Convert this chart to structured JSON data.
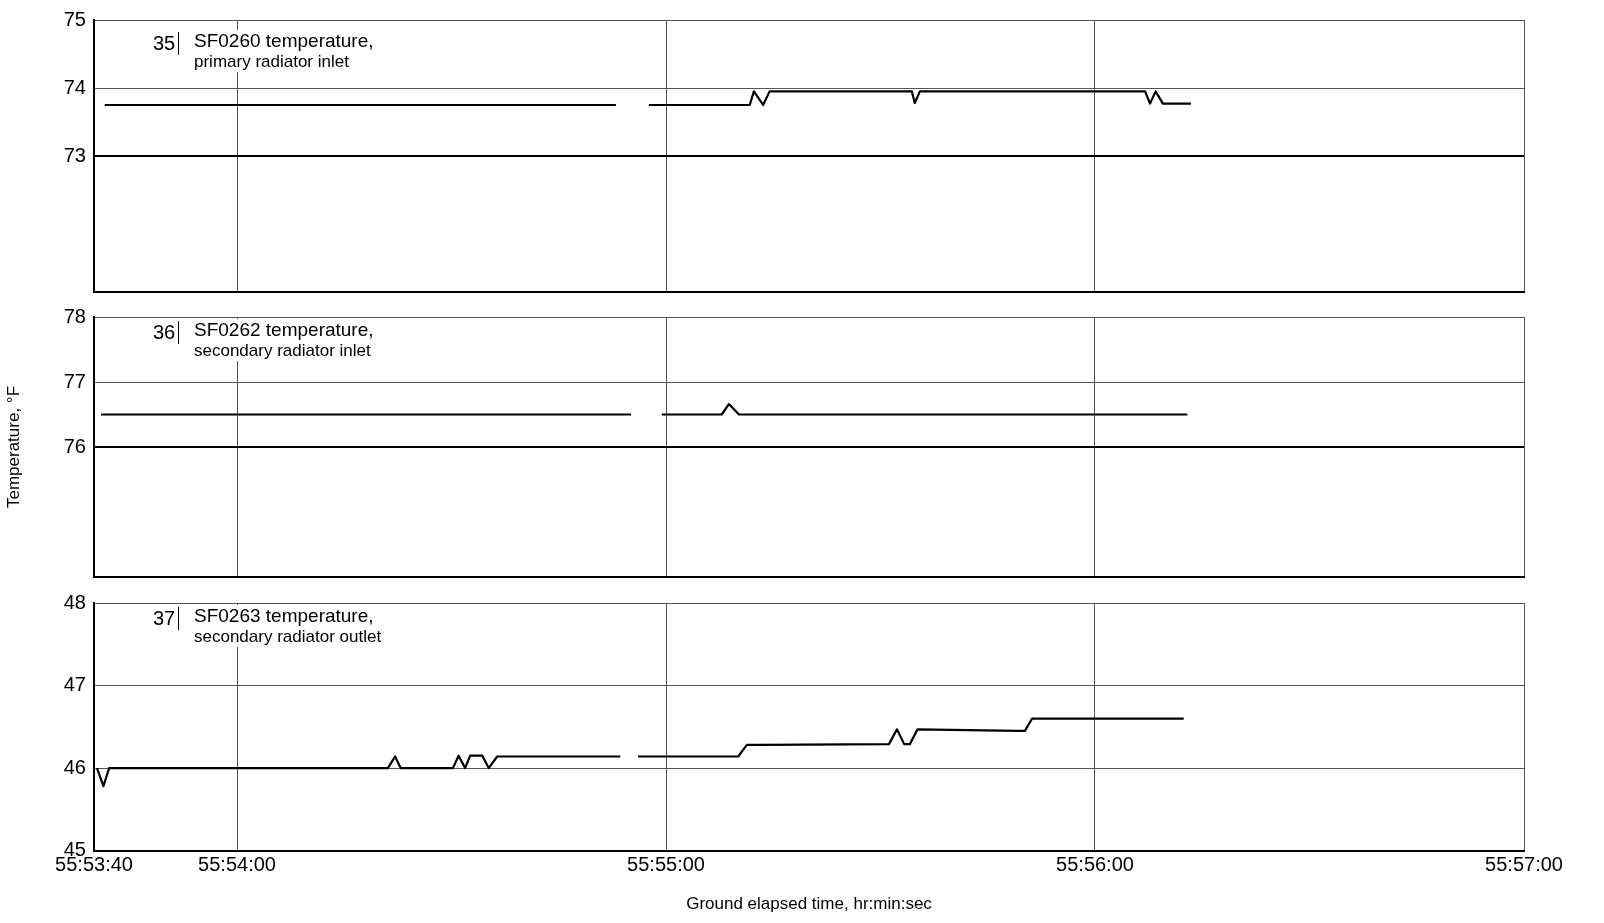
{
  "chart_data": [
    {
      "type": "line",
      "annotations": [
        "35",
        "SF0260 temperature,",
        "primary radiator inlet"
      ],
      "xlim": [
        55.894444,
        55.95
      ],
      "xticks": [
        {
          "value": 55.894444,
          "label": null
        },
        {
          "value": 55.9,
          "label": null
        },
        {
          "value": 55.916667,
          "label": null
        },
        {
          "value": 55.933333,
          "label": null
        },
        {
          "value": 55.95,
          "label": null
        }
      ],
      "ylim": [
        71,
        75
      ],
      "yticks": [
        73,
        74,
        75
      ],
      "tick_labels": "y",
      "grid": true,
      "legend": false,
      "series": [
        {
          "color": "#000000",
          "x": [
            55.89486,
            55.91472,
            55.9154,
            55.916,
            55.91992,
            55.92008,
            55.92044,
            55.92069,
            55.92622,
            55.92633,
            55.92653,
            55.93528,
            55.93547,
            55.93569,
            55.93597,
            55.93706
          ],
          "values": [
            73.75,
            73.75,
            null,
            73.75,
            73.75,
            73.95,
            73.75,
            73.95,
            73.95,
            73.78,
            73.95,
            73.95,
            73.77,
            73.95,
            73.77,
            73.77
          ]
        },
        {
          "color": "#000000",
          "x": [
            55.894444,
            55.95
          ],
          "values": [
            73.0,
            73.0
          ]
        }
      ]
    },
    {
      "type": "line",
      "ylabel": "Temperature, °F",
      "annotations": [
        "36",
        "SF0262 temperature,",
        "secondary radiator inlet"
      ],
      "xlim": [
        55.894444,
        55.95
      ],
      "xticks": [
        {
          "value": 55.894444,
          "label": null
        },
        {
          "value": 55.9,
          "label": null
        },
        {
          "value": 55.916667,
          "label": null
        },
        {
          "value": 55.933333,
          "label": null
        },
        {
          "value": 55.95,
          "label": null
        }
      ],
      "ylim": [
        74,
        78
      ],
      "yticks": [
        76,
        77,
        78
      ],
      "tick_labels": "y",
      "grid": true,
      "legend": false,
      "series": [
        {
          "color": "#000000",
          "x": [
            55.89472,
            55.91531,
            55.9159,
            55.9165,
            55.91883,
            55.91911,
            55.9195,
            55.93692
          ],
          "values": [
            76.5,
            76.5,
            null,
            76.5,
            76.5,
            76.66,
            76.5,
            76.5
          ]
        },
        {
          "color": "#000000",
          "x": [
            55.894444,
            55.95
          ],
          "values": [
            76.0,
            76.0
          ]
        }
      ]
    },
    {
      "type": "line",
      "xlabel": "Ground elapsed time, hr:min:sec",
      "annotations": [
        "37",
        "SF0263 temperature,",
        "secondary radiator outlet"
      ],
      "xlim": [
        55.894444,
        55.95
      ],
      "xticks": [
        {
          "value": 55.894444,
          "label": "55:53:40"
        },
        {
          "value": 55.9,
          "label": "55:54:00"
        },
        {
          "value": 55.916667,
          "label": "55:55:00"
        },
        {
          "value": 55.933333,
          "label": "55:56:00"
        },
        {
          "value": 55.95,
          "label": "55:57:00"
        }
      ],
      "ylim": [
        45,
        48
      ],
      "yticks": [
        45,
        46,
        47,
        48
      ],
      "grid": true,
      "legend": false,
      "series": [
        {
          "color": "#000000",
          "x": [
            55.89456,
            55.89481,
            55.89503,
            55.90586,
            55.90614,
            55.90636,
            55.90839,
            55.90861,
            55.90886,
            55.90906,
            55.90953,
            55.90978,
            55.91011,
            55.91489,
            55.9152,
            55.91558,
            55.91947,
            55.91981,
            55.92533,
            55.92564,
            55.92592,
            55.92614,
            55.92644,
            55.93061,
            55.93089,
            55.93678
          ],
          "values": [
            46.0,
            45.78,
            46.0,
            46.0,
            46.14,
            46.0,
            46.0,
            46.15,
            46.0,
            46.15,
            46.15,
            46.0,
            46.14,
            46.14,
            null,
            46.14,
            46.14,
            46.28,
            46.29,
            46.47,
            46.29,
            46.29,
            46.47,
            46.45,
            46.6,
            46.6
          ]
        }
      ]
    }
  ]
}
